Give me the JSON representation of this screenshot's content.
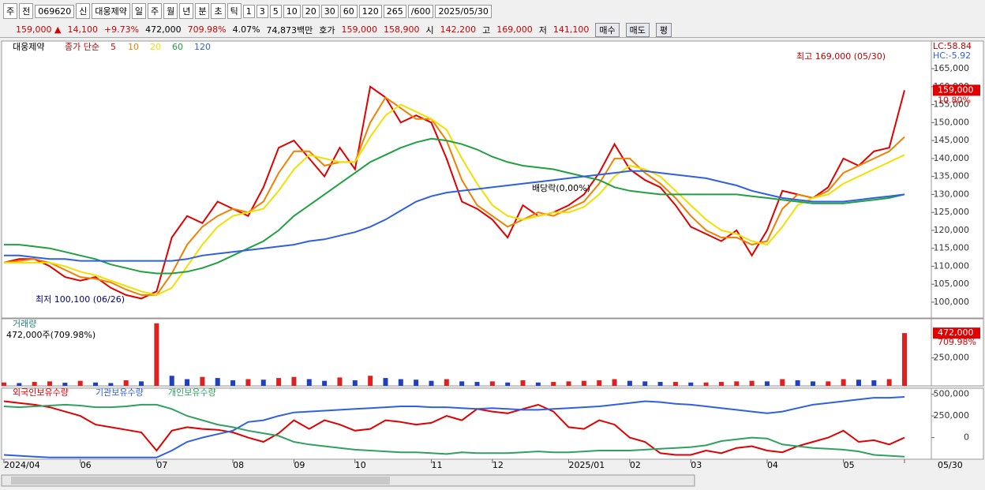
{
  "toolbar": {
    "items": [
      "주",
      "전",
      "069620",
      "신",
      "대웅제약",
      "일",
      "주",
      "월",
      "년",
      "분",
      "초",
      "틱",
      "1",
      "3",
      "5",
      "10",
      "20",
      "30",
      "60",
      "120",
      "265",
      "/600",
      "2025/05/30"
    ]
  },
  "info": {
    "items": [
      {
        "text": "159,000 ▲",
        "color": "#d00000"
      },
      {
        "text": "14,100",
        "color": "#d00000"
      },
      {
        "text": "+9.73%",
        "color": "#d00000"
      },
      {
        "text": "472,000",
        "color": "#000000"
      },
      {
        "text": "709.98%",
        "color": "#d00000"
      },
      {
        "text": "4.07%",
        "color": "#000000"
      },
      {
        "text": "74,873백만",
        "color": "#000000"
      },
      {
        "text": "호가",
        "color": "#000000"
      },
      {
        "text": "159,000",
        "color": "#d00000"
      },
      {
        "text": "158,900",
        "color": "#d00000"
      },
      {
        "text": "시",
        "color": "#000000"
      },
      {
        "text": "142,200",
        "color": "#d00000"
      },
      {
        "text": "고",
        "color": "#000000"
      },
      {
        "text": "169,000",
        "color": "#d00000"
      },
      {
        "text": "저",
        "color": "#000000"
      },
      {
        "text": "141,100",
        "color": "#d00000"
      }
    ],
    "buttons": [
      "매수",
      "매도",
      "평"
    ]
  },
  "chart_data": [
    {
      "type": "line",
      "name": "대웅제약",
      "legend_prefix": "종가 단순",
      "categories": [
        "2024/04",
        null,
        null,
        null,
        null,
        "06",
        null,
        null,
        null,
        null,
        "07",
        null,
        null,
        null,
        null,
        "08",
        null,
        null,
        null,
        "09",
        null,
        null,
        null,
        "10",
        null,
        null,
        null,
        null,
        "11",
        null,
        null,
        null,
        "12",
        null,
        null,
        null,
        null,
        "2025/01",
        null,
        null,
        null,
        "02",
        null,
        null,
        null,
        "03",
        null,
        null,
        null,
        null,
        "04",
        null,
        null,
        null,
        null,
        "05",
        null,
        null,
        null,
        "05/30"
      ],
      "series": [
        {
          "name": "5",
          "color": "#e00000",
          "values": [
            111000,
            112000,
            112000,
            110000,
            107000,
            106000,
            107000,
            104000,
            102000,
            101000,
            103000,
            118000,
            124000,
            122000,
            128000,
            126000,
            124000,
            132000,
            143000,
            145000,
            140000,
            135000,
            143000,
            137000,
            160000,
            157000,
            150000,
            152000,
            150000,
            140000,
            128000,
            126000,
            123000,
            118000,
            127000,
            124000,
            125000,
            127000,
            130000,
            136000,
            144000,
            137000,
            134000,
            132000,
            127000,
            121000,
            119000,
            117000,
            120000,
            113000,
            120000,
            131000,
            130000,
            129000,
            132000,
            140000,
            138000,
            142000,
            143000,
            159000
          ]
        },
        {
          "name": "10",
          "color": "#f08000",
          "values": [
            111000,
            111500,
            112000,
            111000,
            109000,
            107000,
            106500,
            105500,
            103500,
            102000,
            102000,
            108000,
            116000,
            121000,
            124000,
            126000,
            125000,
            128000,
            136000,
            142000,
            142000,
            138000,
            139000,
            139000,
            150000,
            157000,
            154000,
            151000,
            151000,
            145000,
            134000,
            127000,
            124000,
            121000,
            123000,
            125000,
            124000,
            126000,
            128000,
            133000,
            140000,
            140000,
            136000,
            133000,
            129000,
            124000,
            120000,
            118000,
            118000,
            116000,
            117000,
            126000,
            130000,
            129000,
            131000,
            136000,
            138000,
            140000,
            142000,
            146000
          ]
        },
        {
          "name": "20",
          "color": "#f0e000",
          "values": [
            111000,
            111000,
            111000,
            111000,
            110000,
            108500,
            107500,
            106000,
            104500,
            103000,
            102000,
            104000,
            110000,
            116000,
            121000,
            124000,
            125000,
            126000,
            131000,
            137000,
            141000,
            140000,
            139000,
            139000,
            146000,
            152000,
            155000,
            153000,
            151000,
            148000,
            140000,
            133000,
            127000,
            124000,
            123000,
            124000,
            125000,
            125000,
            126500,
            130000,
            135000,
            138000,
            137000,
            135000,
            131000,
            127000,
            123000,
            120000,
            119000,
            117000,
            116000,
            121000,
            127000,
            129000,
            130000,
            133000,
            135000,
            137000,
            139000,
            141000
          ]
        },
        {
          "name": "60",
          "color": "#20a040",
          "values": [
            116000,
            116000,
            115500,
            115000,
            114000,
            113000,
            112000,
            110500,
            109500,
            108500,
            108000,
            108000,
            108500,
            109500,
            111000,
            113000,
            115000,
            117000,
            120000,
            124000,
            127000,
            130000,
            133000,
            136000,
            139000,
            141000,
            143000,
            144500,
            145500,
            145000,
            144000,
            142500,
            140500,
            139000,
            138000,
            137500,
            137000,
            136000,
            135000,
            134000,
            132000,
            131000,
            130500,
            130000,
            130000,
            130000,
            130000,
            130000,
            130000,
            129500,
            129000,
            128500,
            128000,
            127500,
            127500,
            127500,
            128000,
            128500,
            129000,
            130000
          ]
        },
        {
          "name": "120",
          "color": "#3060e0",
          "values": [
            113000,
            113000,
            112500,
            112000,
            112000,
            111500,
            111500,
            111500,
            111500,
            111500,
            111500,
            111500,
            112000,
            113000,
            113500,
            114000,
            114500,
            115000,
            115500,
            116000,
            117000,
            117500,
            118500,
            119500,
            121000,
            123000,
            125500,
            128000,
            129500,
            130500,
            131000,
            131500,
            132000,
            132500,
            133000,
            133500,
            134000,
            134500,
            135000,
            135500,
            136000,
            136500,
            136500,
            136000,
            135500,
            135000,
            134500,
            133500,
            132500,
            131000,
            130000,
            129000,
            128500,
            128000,
            128000,
            128000,
            128500,
            129000,
            129500,
            130000
          ]
        }
      ],
      "ylim": [
        95600,
        172700
      ],
      "yticks": [
        {
          "value": 100000,
          "label": "100,000"
        },
        {
          "value": 105000,
          "label": "105,000"
        },
        {
          "value": 110000,
          "label": "110,000"
        },
        {
          "value": 115000,
          "label": "115,000"
        },
        {
          "value": 120000,
          "label": "120,000"
        },
        {
          "value": 125000,
          "label": "125,000"
        },
        {
          "value": 130000,
          "label": "130,000"
        },
        {
          "value": 135000,
          "label": "135,000"
        },
        {
          "value": 140000,
          "label": "140,000"
        },
        {
          "value": 145000,
          "label": "145,000"
        },
        {
          "value": 150000,
          "label": "150,000"
        },
        {
          "value": 155000,
          "label": "155,000"
        },
        {
          "value": 160000,
          "label": "160,000"
        },
        {
          "value": 165000,
          "label": "165,000"
        }
      ],
      "current": {
        "value": 159000,
        "label": "159,000",
        "change": "10.80%"
      },
      "annotations": [
        "최고 169,000 (05/30)",
        "최저 100,100 (06/26)",
        "배당락(0,00%)",
        "LC:58.84",
        "HC:-5.92"
      ]
    },
    {
      "type": "bar",
      "title": "거래량",
      "subtitle": "472,000주(709.98%)",
      "color_up": "#e02020",
      "color_down": "#2040c0",
      "values": [
        30000,
        25000,
        35000,
        40000,
        28000,
        45000,
        30000,
        25000,
        50000,
        40000,
        560000,
        90000,
        60000,
        80000,
        70000,
        50000,
        60000,
        55000,
        70000,
        80000,
        60000,
        45000,
        75000,
        50000,
        90000,
        70000,
        60000,
        55000,
        45000,
        60000,
        40000,
        35000,
        40000,
        30000,
        50000,
        30000,
        35000,
        40000,
        45000,
        50000,
        60000,
        45000,
        40000,
        35000,
        35000,
        30000,
        30000,
        35000,
        40000,
        45000,
        40000,
        60000,
        50000,
        40000,
        40000,
        60000,
        55000,
        50000,
        60000,
        472000
      ],
      "ylim": [
        0,
        600000
      ],
      "yticks": [
        {
          "value": 250000,
          "label": "250,000"
        }
      ],
      "current": {
        "value": 472000,
        "label": "472,000",
        "change": "709.98%"
      }
    },
    {
      "type": "line",
      "series": [
        {
          "name": "외국인보유수량",
          "color": "#e00000",
          "values": [
            420000,
            400000,
            380000,
            350000,
            300000,
            250000,
            150000,
            120000,
            90000,
            60000,
            -150000,
            80000,
            120000,
            100000,
            90000,
            60000,
            0,
            -50000,
            50000,
            200000,
            100000,
            200000,
            150000,
            80000,
            100000,
            200000,
            180000,
            150000,
            170000,
            250000,
            200000,
            330000,
            300000,
            280000,
            330000,
            380000,
            300000,
            120000,
            100000,
            200000,
            150000,
            0,
            -50000,
            -180000,
            -200000,
            -200000,
            -150000,
            -180000,
            -120000,
            -100000,
            -150000,
            -170000,
            -100000,
            -50000,
            0,
            80000,
            -50000,
            -30000,
            -80000,
            0
          ]
        },
        {
          "name": "기관보유수량",
          "color": "#3060e0",
          "values": [
            -200000,
            -210000,
            -220000,
            -230000,
            -230000,
            -230000,
            -230000,
            -230000,
            -230000,
            -230000,
            -230000,
            -150000,
            -50000,
            0,
            40000,
            80000,
            180000,
            200000,
            250000,
            290000,
            300000,
            310000,
            320000,
            330000,
            340000,
            350000,
            360000,
            360000,
            350000,
            350000,
            340000,
            330000,
            340000,
            330000,
            320000,
            320000,
            330000,
            340000,
            350000,
            360000,
            380000,
            400000,
            420000,
            410000,
            390000,
            380000,
            360000,
            340000,
            320000,
            300000,
            280000,
            300000,
            340000,
            380000,
            400000,
            420000,
            440000,
            460000,
            460000,
            470000
          ]
        },
        {
          "name": "개인보유수량",
          "color": "#30a060",
          "values": [
            360000,
            350000,
            360000,
            370000,
            380000,
            370000,
            350000,
            350000,
            360000,
            380000,
            380000,
            330000,
            250000,
            200000,
            150000,
            120000,
            80000,
            50000,
            20000,
            -50000,
            -80000,
            -100000,
            -120000,
            -140000,
            -150000,
            -160000,
            -170000,
            -170000,
            -180000,
            -190000,
            -170000,
            -180000,
            -180000,
            -180000,
            -170000,
            -160000,
            -170000,
            -170000,
            -160000,
            -150000,
            -150000,
            -150000,
            -140000,
            -130000,
            -120000,
            -110000,
            -90000,
            -40000,
            -20000,
            0,
            -10000,
            -80000,
            -100000,
            -120000,
            -130000,
            -140000,
            -160000,
            -200000,
            -210000,
            -220000
          ]
        }
      ],
      "ylim": [
        -250000,
        570000
      ],
      "yticks": [
        {
          "value": 500000,
          "label": "500,000"
        },
        {
          "value": 250000,
          "label": "250,000"
        },
        0
      ]
    }
  ]
}
